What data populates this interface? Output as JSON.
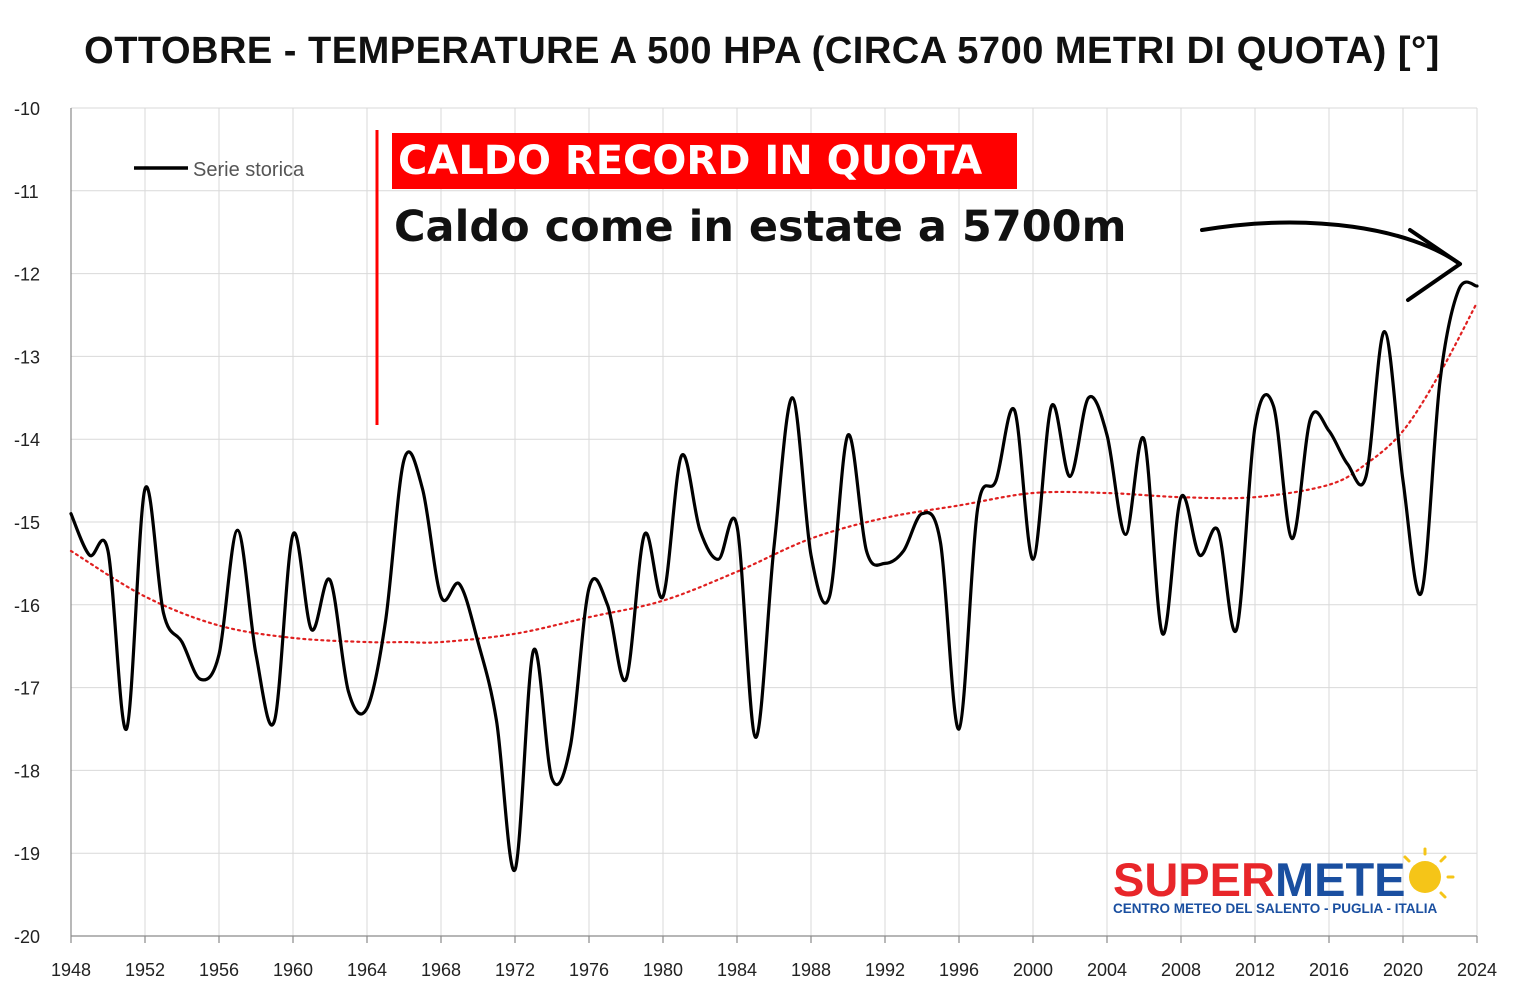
{
  "chart_data": {
    "type": "line",
    "title": "OTTOBRE - TEMPERATURE A 500 HPA (CIRCA 5700 METRI DI QUOTA) [°]",
    "xlabel": "",
    "ylabel": "",
    "xlim": [
      1948,
      2024
    ],
    "ylim": [
      -20,
      -10
    ],
    "x_ticks": [
      "1948",
      "1952",
      "1956",
      "1960",
      "1964",
      "1968",
      "1972",
      "1976",
      "1980",
      "1984",
      "1988",
      "1992",
      "1996",
      "2000",
      "2004",
      "2008",
      "2012",
      "2016",
      "2020",
      "2024"
    ],
    "y_ticks": [
      "-10",
      "-11",
      "-12",
      "-13",
      "-14",
      "-15",
      "-16",
      "-17",
      "-18",
      "-19",
      "-20"
    ],
    "grid": true,
    "legend": {
      "placement": "top-left",
      "entries": [
        "Serie storica"
      ]
    },
    "series": [
      {
        "name": "Serie storica",
        "color": "#000000",
        "x": [
          1948,
          1949,
          1950,
          1951,
          1952,
          1953,
          1954,
          1955,
          1956,
          1957,
          1958,
          1959,
          1960,
          1961,
          1962,
          1963,
          1964,
          1965,
          1966,
          1967,
          1968,
          1969,
          1970,
          1971,
          1972,
          1973,
          1974,
          1975,
          1976,
          1977,
          1978,
          1979,
          1980,
          1981,
          1982,
          1983,
          1984,
          1985,
          1986,
          1987,
          1988,
          1989,
          1990,
          1991,
          1992,
          1993,
          1994,
          1995,
          1996,
          1997,
          1998,
          1999,
          2000,
          2001,
          2002,
          2003,
          2004,
          2005,
          2006,
          2007,
          2008,
          2009,
          2010,
          2011,
          2012,
          2013,
          2014,
          2015,
          2016,
          2017,
          2018,
          2019,
          2020,
          2021,
          2022,
          2023,
          2024
        ],
        "y": [
          -14.9,
          -15.4,
          -15.35,
          -17.5,
          -14.6,
          -16.1,
          -16.45,
          -16.9,
          -16.6,
          -15.1,
          -16.6,
          -17.4,
          -15.15,
          -16.3,
          -15.7,
          -17.05,
          -17.25,
          -16.2,
          -14.25,
          -14.6,
          -15.9,
          -15.75,
          -16.45,
          -17.4,
          -19.2,
          -16.55,
          -18.1,
          -17.7,
          -15.8,
          -16.0,
          -16.9,
          -15.15,
          -15.9,
          -14.2,
          -15.1,
          -15.45,
          -15.05,
          -17.6,
          -15.3,
          -13.5,
          -15.4,
          -15.9,
          -13.95,
          -15.35,
          -15.5,
          -15.35,
          -14.9,
          -15.25,
          -17.5,
          -14.85,
          -14.5,
          -13.65,
          -15.45,
          -13.6,
          -14.45,
          -13.5,
          -13.95,
          -15.15,
          -14.0,
          -16.35,
          -14.7,
          -15.4,
          -15.1,
          -16.3,
          -13.85,
          -13.6,
          -15.2,
          -13.75,
          -13.9,
          -14.3,
          -14.45,
          -12.7,
          -14.5,
          -15.85,
          -13.3,
          -12.2,
          -12.15
        ]
      },
      {
        "name": "",
        "color": "#e02020",
        "style": "dotted",
        "x": [
          1948,
          1952,
          1956,
          1960,
          1964,
          1966,
          1968,
          1972,
          1976,
          1980,
          1984,
          1988,
          1992,
          1996,
          2000,
          2004,
          2008,
          2012,
          2016,
          2018,
          2020,
          2022,
          2024
        ],
        "y": [
          -15.35,
          -15.9,
          -16.25,
          -16.4,
          -16.45,
          -16.45,
          -16.45,
          -16.35,
          -16.15,
          -15.95,
          -15.6,
          -15.2,
          -14.95,
          -14.8,
          -14.65,
          -14.65,
          -14.7,
          -14.7,
          -14.55,
          -14.3,
          -13.9,
          -13.2,
          -12.35
        ]
      }
    ],
    "annotations": {
      "banner": "CALDO RECORD IN QUOTA",
      "subtitle": "Caldo come in estate a 5700m",
      "banner_color": "#ff0000",
      "arrow_points_to": 2024
    }
  },
  "logo": {
    "part1": "SUPER",
    "part2": "METE",
    "tagline": "CENTRO METEO DEL SALENTO - PUGLIA - ITALIA",
    "color1": "#e8262a",
    "color2": "#1a4fa0",
    "sun_color": "#f5c518"
  }
}
